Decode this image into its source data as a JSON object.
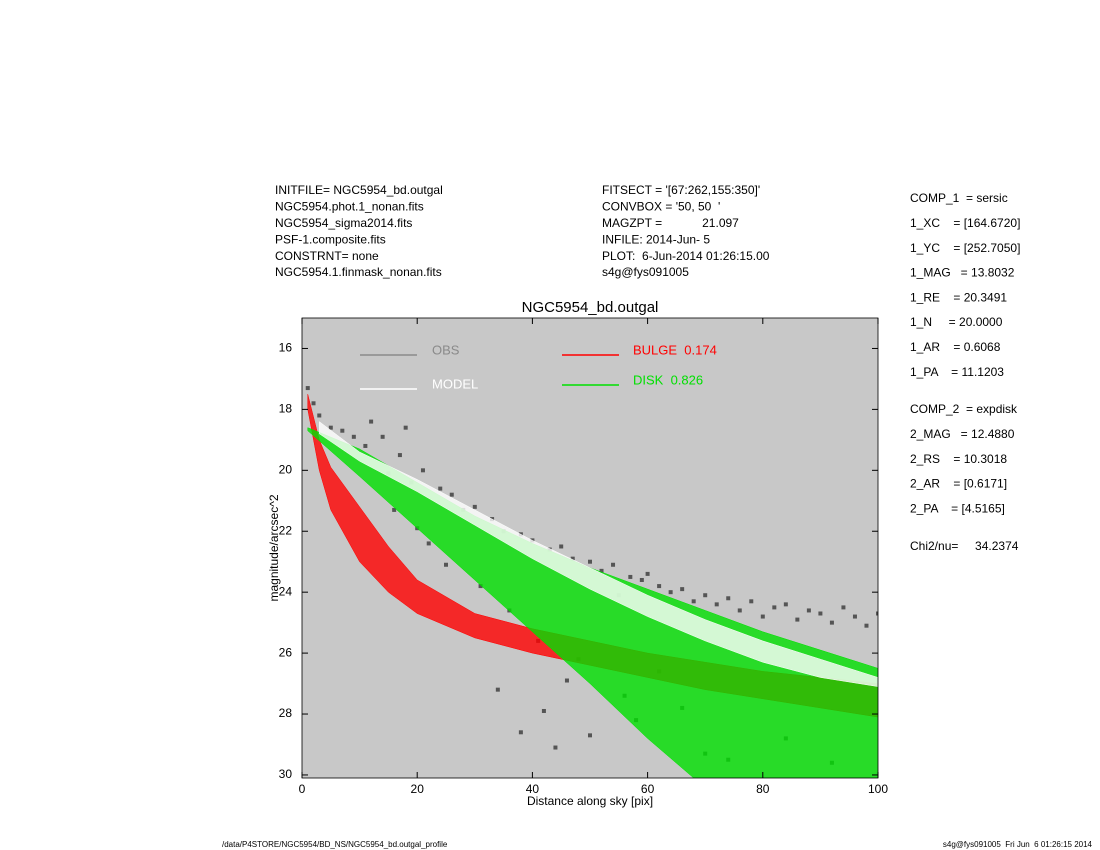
{
  "header": {
    "left": [
      "INITFILE= NGC5954_bd.outgal",
      "NGC5954.phot.1_nonan.fits",
      "NGC5954_sigma2014.fits",
      "PSF-1.composite.fits",
      "CONSTRNT= none",
      "NGC5954.1.finmask_nonan.fits"
    ],
    "middle": [
      "FITSECT = '[67:262,155:350]'",
      "CONVBOX = '50, 50  '",
      "MAGZPT =            21.097",
      "INFILE: 2014-Jun- 5",
      "PLOT:  6-Jun-2014 01:26:15.00",
      "s4g@fys091005"
    ]
  },
  "right_panel": {
    "comp1": [
      "COMP_1  = sersic",
      "1_XC    = [164.6720]",
      "1_YC    = [252.7050]",
      "1_MAG   = 13.8032",
      "1_RE    = 20.3491",
      "1_N     = 20.0000",
      "1_AR    = 0.6068",
      "1_PA    = 11.1203"
    ],
    "comp2": [
      "COMP_2  = expdisk",
      "2_MAG   = 12.4880",
      "2_RS    = 10.3018",
      "2_AR    = [0.6171]",
      "2_PA    = [4.5165]"
    ],
    "chi2": "Chi2/nu=     34.2374"
  },
  "footer": {
    "left": "/data/P4STORE/NGC5954/BD_NS/NGC5954_bd.outgal_profile",
    "right": "s4g@fys091005  Fri Jun  6 01:26:15 2014"
  },
  "chart_data": {
    "type": "scatter",
    "title": "NGC5954_bd.outgal",
    "x_label": "Distance along sky [pix]",
    "y_label": "magnitude/arcsec^2",
    "xlim": [
      0,
      100
    ],
    "ylim": [
      15,
      30.1
    ],
    "y_inverted": true,
    "xticks": [
      0,
      20,
      40,
      60,
      80,
      100
    ],
    "yticks": [
      16,
      18,
      20,
      22,
      24,
      26,
      28,
      30
    ],
    "background": "#c8c8c8",
    "points": {
      "name": "OBS",
      "color": "#555555",
      "x": [
        1,
        2,
        3,
        5,
        7,
        9,
        11,
        12,
        14,
        15,
        16,
        17,
        18,
        19,
        20,
        21,
        22,
        24,
        25,
        26,
        28,
        30,
        31,
        33,
        35,
        36,
        38,
        40,
        41,
        43,
        45,
        47,
        48,
        50,
        52,
        54,
        55,
        57,
        59,
        60,
        62,
        64,
        66,
        68,
        70,
        72,
        74,
        76,
        78,
        80,
        82,
        84,
        86,
        88,
        90,
        92,
        94,
        96,
        98,
        100,
        38,
        42,
        46,
        50,
        56,
        62,
        70,
        34,
        44,
        58,
        66,
        74,
        84,
        92
      ],
      "values": [
        17.3,
        17.8,
        18.2,
        18.6,
        18.7,
        18.9,
        19.2,
        18.4,
        18.9,
        20.1,
        21.3,
        19.5,
        18.6,
        20.4,
        21.9,
        20.0,
        22.4,
        20.6,
        23.1,
        20.8,
        21.3,
        21.2,
        23.8,
        21.6,
        22.0,
        24.6,
        22.1,
        22.3,
        25.6,
        22.6,
        22.5,
        22.9,
        26.2,
        23.0,
        23.3,
        23.1,
        24.1,
        23.5,
        23.6,
        23.4,
        23.8,
        24.0,
        23.9,
        24.3,
        24.1,
        24.4,
        24.2,
        24.6,
        24.3,
        24.8,
        24.5,
        24.4,
        24.9,
        24.6,
        24.7,
        25.0,
        24.5,
        24.8,
        25.1,
        24.7,
        28.6,
        27.9,
        26.9,
        28.7,
        27.4,
        26.6,
        29.3,
        27.2,
        29.1,
        28.2,
        27.8,
        29.5,
        28.8,
        29.6
      ]
    },
    "series": [
      {
        "name": "OBS",
        "color": "#8a8a8a"
      },
      {
        "name": "MODEL",
        "color": "#ffffff",
        "upper": {
          "x": [
            3,
            10,
            20,
            30,
            40,
            50,
            60,
            70,
            80,
            90,
            100
          ],
          "values": [
            18.4,
            19.4,
            20.3,
            21.3,
            22.3,
            23.2,
            24.1,
            24.9,
            25.6,
            26.2,
            26.8
          ]
        },
        "lower": {
          "x": [
            3,
            10,
            20,
            30,
            40,
            50,
            60,
            70,
            80,
            90,
            100
          ],
          "values": [
            18.8,
            19.7,
            20.7,
            21.8,
            22.9,
            23.9,
            24.8,
            25.6,
            26.3,
            26.8,
            27.1
          ]
        }
      },
      {
        "name": "BULGE  0.174",
        "color": "#ff0000",
        "upper": {
          "x": [
            1,
            3,
            5,
            10,
            15,
            20,
            30,
            40,
            50,
            60,
            70,
            80,
            90,
            100
          ],
          "values": [
            17.5,
            19.0,
            19.9,
            21.2,
            22.5,
            23.6,
            24.7,
            25.2,
            25.6,
            26.0,
            26.3,
            26.6,
            26.8,
            27.0
          ]
        },
        "lower": {
          "x": [
            1,
            3,
            5,
            10,
            15,
            20,
            30,
            40,
            50,
            60,
            70,
            80,
            90,
            100
          ],
          "values": [
            18.0,
            20.0,
            21.3,
            23.0,
            24.0,
            24.7,
            25.5,
            26.0,
            26.4,
            26.8,
            27.2,
            27.5,
            27.8,
            28.1
          ]
        }
      },
      {
        "name": "DISK  0.826",
        "color": "#00e000",
        "upper": {
          "x": [
            1,
            10,
            20,
            30,
            40,
            50,
            60,
            70,
            80,
            90,
            100
          ],
          "values": [
            18.6,
            19.3,
            20.4,
            21.5,
            22.4,
            23.2,
            23.9,
            24.6,
            25.3,
            25.9,
            26.5
          ]
        },
        "lower": {
          "x": [
            1,
            10,
            20,
            30,
            40,
            50,
            60,
            68
          ],
          "values": [
            18.7,
            20.2,
            21.9,
            23.6,
            25.3,
            27.0,
            28.8,
            30.1
          ]
        }
      }
    ]
  }
}
